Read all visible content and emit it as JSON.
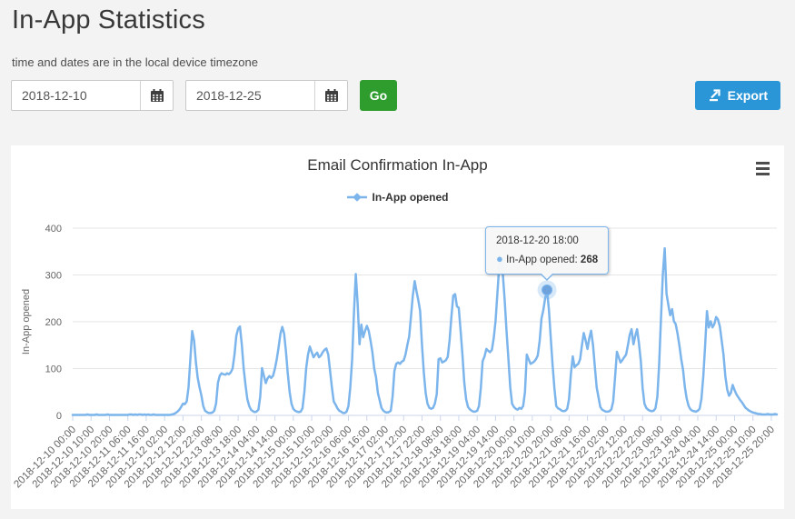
{
  "page": {
    "title": "In-App Statistics",
    "subtitle": "time and dates are in the local device timezone"
  },
  "controls": {
    "date_from": "2018-12-10",
    "date_to": "2018-12-25",
    "go_label": "Go",
    "export_label": "Export"
  },
  "chart": {
    "title": "Email Confirmation In-App",
    "legend_label": "In-App opened",
    "tooltip": {
      "header": "2018-12-20 18:00",
      "series_label": "In-App opened:",
      "value": "268"
    }
  },
  "colors": {
    "page_background": "#f3f3f3",
    "card_background": "#ffffff",
    "go_button": "#2e9d2e",
    "export_button": "#2a96d8",
    "series": "#7cb5ec",
    "gridline": "#e6e6e6",
    "axis_line": "#ccd6eb",
    "axis_label": "#666666"
  },
  "chart_data": {
    "type": "line",
    "title": "Email Confirmation In-App",
    "xlabel": "",
    "ylabel": "In-App opened",
    "ylim": [
      0,
      400
    ],
    "yticks": [
      0,
      100,
      200,
      300,
      400
    ],
    "grid": "horizontal",
    "legend_position": "top",
    "x_start": "2018-12-10 00:00",
    "point_interval_hours": 1,
    "xtick_interval_hours": 10,
    "xticks": [
      "2018-12-10 00:00",
      "2018-12-10 10:00",
      "2018-12-10 20:00",
      "2018-12-11 06:00",
      "2018-12-11 16:00",
      "2018-12-12 02:00",
      "2018-12-12 12:00",
      "2018-12-12 22:00",
      "2018-12-13 08:00",
      "2018-12-13 18:00",
      "2018-12-14 04:00",
      "2018-12-14 14:00",
      "2018-12-15 00:00",
      "2018-12-15 10:00",
      "2018-12-15 20:00",
      "2018-12-16 06:00",
      "2018-12-16 16:00",
      "2018-12-17 02:00",
      "2018-12-17 12:00",
      "2018-12-17 22:00",
      "2018-12-18 08:00",
      "2018-12-18 18:00",
      "2018-12-19 04:00",
      "2018-12-19 14:00",
      "2018-12-20 00:00",
      "2018-12-20 10:00",
      "2018-12-20 20:00",
      "2018-12-21 06:00",
      "2018-12-21 16:00",
      "2018-12-22 02:00",
      "2018-12-22 12:00",
      "2018-12-22 22:00",
      "2018-12-23 08:00",
      "2018-12-23 18:00",
      "2018-12-24 04:00",
      "2018-12-24 14:00",
      "2018-12-25 00:00",
      "2018-12-25 10:00",
      "2018-12-25 20:00"
    ],
    "series": [
      {
        "name": "In-App opened",
        "color": "#7cb5ec",
        "values": [
          1,
          1,
          1,
          1,
          1,
          1,
          1,
          1,
          2,
          1,
          1,
          1,
          1,
          2,
          1,
          1,
          1,
          1,
          1,
          2,
          1,
          1,
          1,
          1,
          1,
          1,
          1,
          1,
          1,
          1,
          1,
          2,
          2,
          1,
          2,
          1,
          2,
          2,
          1,
          2,
          1,
          2,
          1,
          1,
          2,
          1,
          1,
          1,
          1,
          1,
          1,
          1,
          1,
          1,
          2,
          3,
          5,
          8,
          12,
          18,
          25,
          24,
          30,
          60,
          120,
          180,
          160,
          114,
          80,
          60,
          43,
          20,
          10,
          7,
          5,
          5,
          6,
          10,
          25,
          70,
          85,
          90,
          88,
          87,
          90,
          88,
          92,
          100,
          130,
          170,
          185,
          190,
          150,
          100,
          65,
          35,
          20,
          12,
          9,
          7,
          8,
          12,
          40,
          101,
          85,
          69,
          79,
          84,
          80,
          85,
          100,
          120,
          145,
          175,
          189,
          175,
          137,
          90,
          50,
          25,
          14,
          10,
          8,
          7,
          8,
          15,
          50,
          101,
          130,
          147,
          135,
          124,
          130,
          134,
          124,
          128,
          135,
          140,
          143,
          130,
          95,
          60,
          30,
          23,
          15,
          10,
          8,
          5,
          5,
          8,
          20,
          59,
          120,
          220,
          302,
          240,
          152,
          194,
          167,
          180,
          191,
          181,
          160,
          136,
          100,
          81,
          48,
          32,
          16,
          10,
          7,
          6,
          7,
          10,
          40,
          95,
          110,
          113,
          110,
          115,
          117,
          130,
          150,
          168,
          210,
          255,
          287,
          265,
          246,
          223,
          149,
          91,
          48,
          25,
          16,
          14,
          16,
          25,
          45,
          120,
          122,
          113,
          115,
          118,
          125,
          160,
          210,
          256,
          259,
          233,
          230,
          180,
          129,
          70,
          35,
          18,
          13,
          10,
          8,
          8,
          10,
          20,
          58,
          116,
          126,
          142,
          138,
          135,
          140,
          165,
          201,
          259,
          320,
          335,
          300,
          245,
          180,
          120,
          60,
          25,
          18,
          14,
          12,
          16,
          14,
          20,
          50,
          130,
          120,
          110,
          112,
          115,
          120,
          128,
          160,
          207,
          225,
          250,
          268,
          227,
          168,
          110,
          58,
          20,
          15,
          13,
          10,
          9,
          10,
          14,
          35,
          90,
          126,
          103,
          107,
          110,
          120,
          150,
          176,
          160,
          142,
          165,
          181,
          150,
          104,
          60,
          39,
          18,
          12,
          10,
          8,
          8,
          9,
          13,
          30,
          80,
          136,
          124,
          113,
          118,
          124,
          130,
          150,
          172,
          184,
          152,
          170,
          184,
          155,
          116,
          58,
          25,
          16,
          12,
          10,
          9,
          10,
          15,
          40,
          110,
          207,
          300,
          357,
          260,
          236,
          214,
          227,
          201,
          195,
          175,
          149,
          120,
          97,
          60,
          36,
          20,
          13,
          10,
          9,
          8,
          10,
          14,
          35,
          84,
          150,
          223,
          188,
          201,
          188,
          195,
          210,
          205,
          190,
          160,
          130,
          84,
          55,
          42,
          48,
          65,
          54,
          45,
          39,
          33,
          28,
          22,
          16,
          13,
          10,
          8,
          6,
          5,
          4,
          3,
          3,
          2,
          2,
          2,
          3,
          2,
          2,
          2,
          3,
          2
        ]
      }
    ],
    "tooltip_point": {
      "label": "2018-12-20 18:00",
      "index": 258,
      "y": 268
    }
  }
}
